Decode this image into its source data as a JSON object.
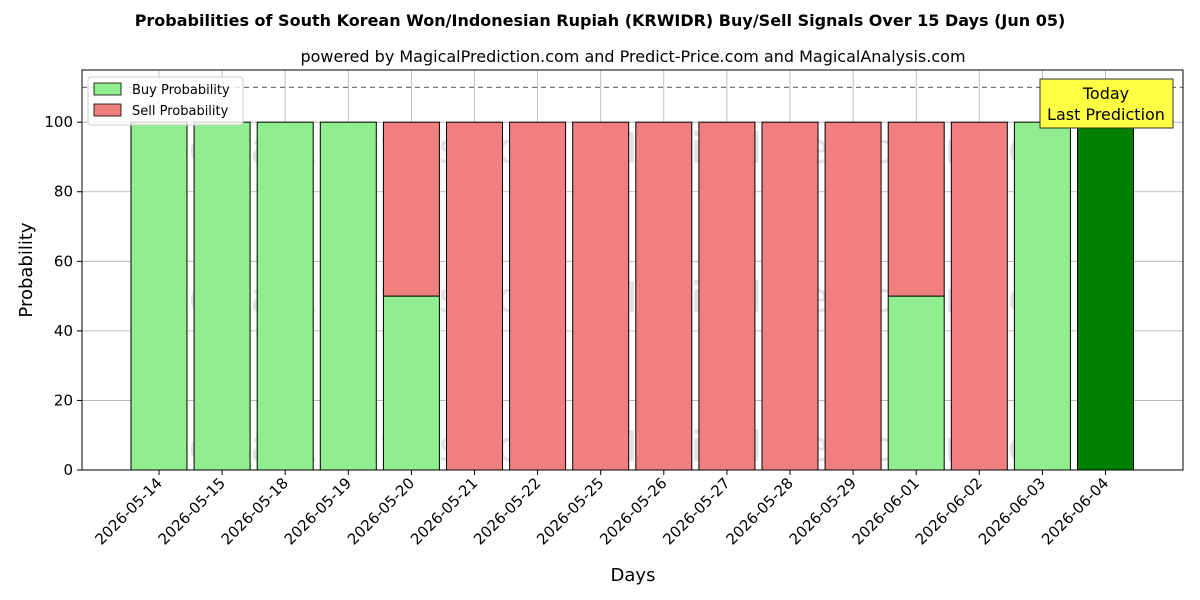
{
  "title": "Probabilities of South Korean Won/Indonesian Rupiah (KRWIDR) Buy/Sell Signals Over 15 Days (Jun 05)",
  "subtitle": "powered by MagicalPrediction.com and Predict-Price.com and MagicalAnalysis.com",
  "watermarks": [
    "MagicalAnalysis.com",
    "MagicalPrediction.com"
  ],
  "annotation": {
    "line1": "Today",
    "line2": "Last Prediction"
  },
  "colors": {
    "buy": "#90ee90",
    "sell": "#f08080",
    "today": "#008000",
    "annotation_bg": "#ffff44"
  },
  "chart_data": {
    "type": "bar",
    "stacked": true,
    "xlabel": "Days",
    "ylabel": "Probability",
    "ylim": [
      0,
      115
    ],
    "yticks": [
      0,
      20,
      40,
      60,
      80,
      100
    ],
    "reference_line": 110,
    "grid": true,
    "legend_position": "top-left",
    "categories": [
      "2026-05-14",
      "2026-05-15",
      "2026-05-18",
      "2026-05-19",
      "2026-05-20",
      "2026-05-21",
      "2026-05-22",
      "2026-05-25",
      "2026-05-26",
      "2026-05-27",
      "2026-05-28",
      "2026-05-29",
      "2026-06-01",
      "2026-06-02",
      "2026-06-03",
      "2026-06-04"
    ],
    "series": [
      {
        "name": "Buy Probability",
        "values": [
          100,
          100,
          100,
          100,
          50,
          0,
          0,
          0,
          0,
          0,
          0,
          0,
          50,
          0,
          100,
          100
        ]
      },
      {
        "name": "Sell Probability",
        "values": [
          0,
          0,
          0,
          0,
          50,
          100,
          100,
          100,
          100,
          100,
          100,
          100,
          50,
          100,
          0,
          0
        ]
      }
    ],
    "highlight_index": 15
  }
}
